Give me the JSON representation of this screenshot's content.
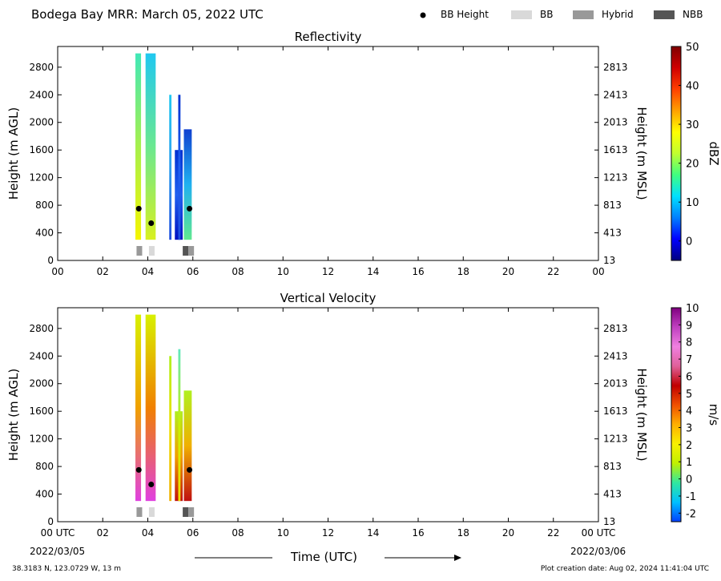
{
  "header": {
    "title": "Bodega Bay MRR:  March 05, 2022 UTC",
    "legend": {
      "bb_height": "BB Height",
      "bb": "BB",
      "hybrid": "Hybrid",
      "nbb": "NBB",
      "colors": {
        "bb_height": "#000000",
        "bb": "#d9d9d9",
        "hybrid": "#999999",
        "nbb": "#555555"
      }
    }
  },
  "footer": {
    "location": "38.3183 N, 123.0729 W, 13 m",
    "creation_date": "Plot creation date: Aug 02, 2024 11:41:04 UTC",
    "start_date": "2022/03/05",
    "end_date": "2022/03/06",
    "time_label": "Time (UTC)"
  },
  "chart_data": [
    {
      "type": "heatmap",
      "title": "Reflectivity",
      "ylabel": "Height (m AGL)",
      "ylabel_right": "Height (m MSL)",
      "xlim_hours": [
        0,
        24
      ],
      "ylim": [
        0,
        3100
      ],
      "yticks": [
        0,
        400,
        800,
        1200,
        1600,
        2000,
        2400,
        2800
      ],
      "yticks_right": [
        "13",
        "413",
        "813",
        "1213",
        "1613",
        "2013",
        "2413",
        "2813"
      ],
      "xticks": [
        "00",
        "02",
        "04",
        "06",
        "08",
        "10",
        "12",
        "14",
        "16",
        "18",
        "20",
        "22",
        "00"
      ],
      "colorbar": {
        "label": "dBZ",
        "range": [
          -5,
          50
        ],
        "ticks": [
          "0",
          "10",
          "20",
          "30",
          "40",
          "50"
        ],
        "tick_values": [
          0,
          10,
          20,
          30,
          40,
          50
        ]
      },
      "data_columns": [
        {
          "start": 3.45,
          "end": 3.7,
          "top": 3000,
          "colors": [
            "#f5f500",
            "#a6f04c",
            "#40e8b8"
          ]
        },
        {
          "start": 3.9,
          "end": 4.35,
          "top": 3000,
          "colors": [
            "#d8f020",
            "#6ae890",
            "#20c8f0"
          ]
        },
        {
          "start": 4.95,
          "end": 5.05,
          "top": 2400,
          "colors": [
            "#2050e0",
            "#30a0f0",
            "#20c8f0"
          ]
        },
        {
          "start": 5.2,
          "end": 5.55,
          "top": 1600,
          "colors": [
            "#0010c0",
            "#2060f0",
            "#0030d0"
          ]
        },
        {
          "start": 5.35,
          "end": 5.45,
          "top": 2400,
          "colors": [
            "#2050e0",
            "#2060f0",
            "#0030d0"
          ]
        },
        {
          "start": 5.6,
          "end": 5.95,
          "top": 1900,
          "colors": [
            "#60e890",
            "#20b0f0",
            "#1040d0"
          ]
        }
      ],
      "bb_height_points": [
        {
          "x": 3.6,
          "y": 750
        },
        {
          "x": 4.15,
          "y": 540
        },
        {
          "x": 5.85,
          "y": 750
        }
      ],
      "bb_type_bars": [
        {
          "start": 3.5,
          "end": 3.75,
          "type": "hybrid"
        },
        {
          "start": 4.05,
          "end": 4.3,
          "type": "bb"
        },
        {
          "start": 5.55,
          "end": 5.8,
          "type": "nbb"
        },
        {
          "start": 5.8,
          "end": 6.05,
          "type": "hybrid"
        }
      ]
    },
    {
      "type": "heatmap",
      "title": "Vertical Velocity",
      "ylabel": "Height (m AGL)",
      "ylabel_right": "Height (m MSL)",
      "xlim_hours": [
        0,
        24
      ],
      "ylim": [
        0,
        3100
      ],
      "yticks": [
        0,
        400,
        800,
        1200,
        1600,
        2000,
        2400,
        2800
      ],
      "yticks_right": [
        "13",
        "413",
        "813",
        "1213",
        "1613",
        "2013",
        "2413",
        "2813"
      ],
      "xticks": [
        "00 UTC",
        "02",
        "04",
        "06",
        "08",
        "10",
        "12",
        "14",
        "16",
        "18",
        "20",
        "22",
        "00 UTC"
      ],
      "colorbar": {
        "label": "m/s",
        "range": [
          -2.5,
          10
        ],
        "ticks": [
          "-2",
          "-1",
          "0",
          "1",
          "2",
          "3",
          "4",
          "5",
          "6",
          "7",
          "8",
          "9",
          "10"
        ],
        "tick_values": [
          -2,
          -1,
          0,
          1,
          2,
          3,
          4,
          5,
          6,
          7,
          8,
          9,
          10
        ]
      },
      "data_columns": [
        {
          "start": 3.45,
          "end": 3.7,
          "top": 3000,
          "colors": [
            "#e040e0",
            "#f0a000",
            "#d8f000"
          ]
        },
        {
          "start": 3.9,
          "end": 4.35,
          "top": 3000,
          "colors": [
            "#e040e0",
            "#f08000",
            "#d8f000"
          ]
        },
        {
          "start": 4.95,
          "end": 5.05,
          "top": 2400,
          "colors": [
            "#f0b000",
            "#f0e000",
            "#b0f020"
          ]
        },
        {
          "start": 5.2,
          "end": 5.55,
          "top": 1600,
          "colors": [
            "#c01010",
            "#f0a000",
            "#b0f020"
          ]
        },
        {
          "start": 5.35,
          "end": 5.45,
          "top": 2500,
          "colors": [
            "#f0e000",
            "#c8f000",
            "#60e8c0"
          ]
        },
        {
          "start": 5.6,
          "end": 5.95,
          "top": 1900,
          "colors": [
            "#c01010",
            "#f0b000",
            "#b0f020"
          ]
        }
      ],
      "bb_height_points": [
        {
          "x": 3.6,
          "y": 750
        },
        {
          "x": 4.15,
          "y": 540
        },
        {
          "x": 5.85,
          "y": 750
        }
      ],
      "bb_type_bars": [
        {
          "start": 3.5,
          "end": 3.75,
          "type": "hybrid"
        },
        {
          "start": 4.05,
          "end": 4.3,
          "type": "bb"
        },
        {
          "start": 5.55,
          "end": 5.8,
          "type": "nbb"
        },
        {
          "start": 5.8,
          "end": 6.05,
          "type": "hybrid"
        }
      ]
    }
  ]
}
